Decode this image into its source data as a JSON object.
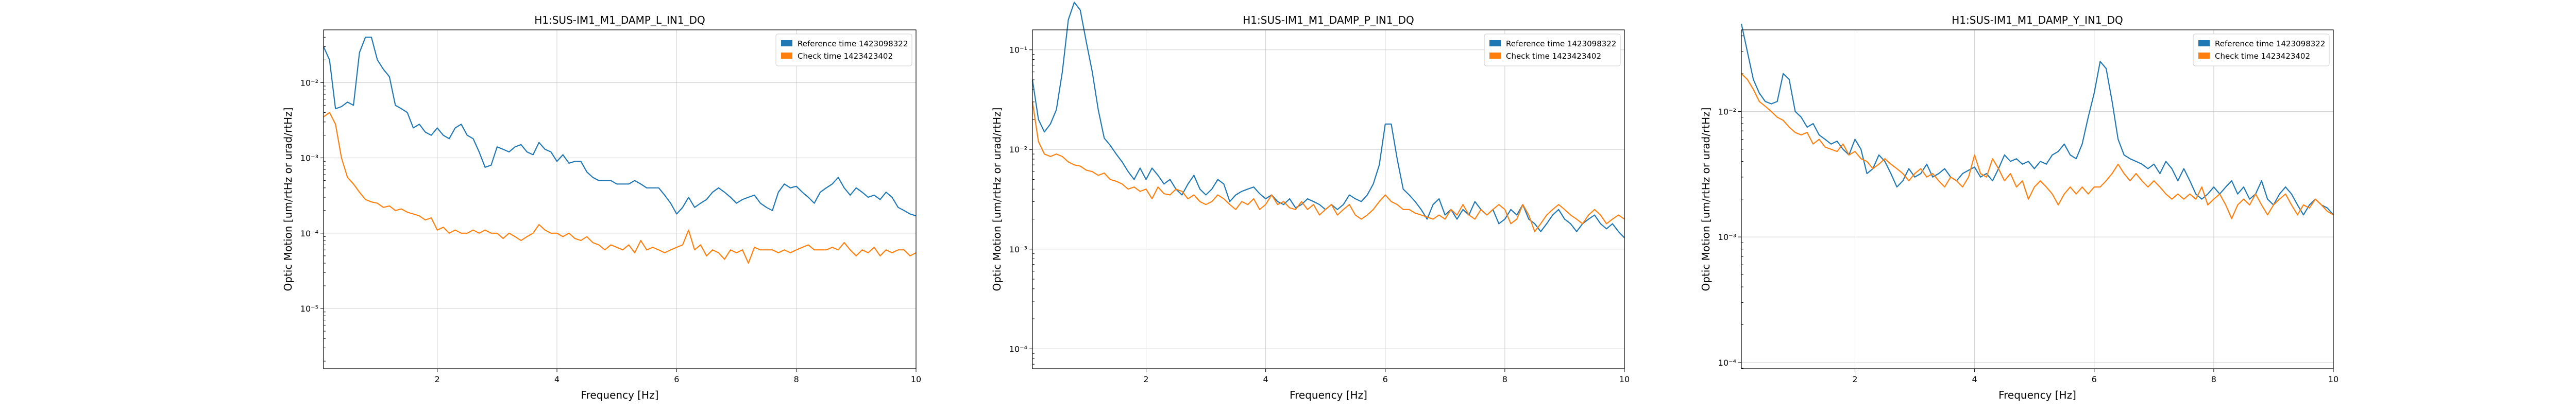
{
  "chart_data": [
    {
      "type": "line",
      "title": "H1:SUS-IM1_M1_DAMP_L_IN1_DQ",
      "xlabel": "Frequency [Hz]",
      "ylabel": "Optic Motion [um/rtHz or urad/rtHz]",
      "xlim": [
        0.1,
        10
      ],
      "ylim_exp": [
        -5.8,
        -1.3
      ],
      "yscale": "log",
      "grid": true,
      "legend_position": "top-right",
      "xticks": [
        2,
        4,
        6,
        8,
        10
      ],
      "yticks": [
        {
          "exp": -2,
          "label": "10⁻²"
        },
        {
          "exp": -3,
          "label": "10⁻³"
        },
        {
          "exp": -4,
          "label": "10⁻⁴"
        },
        {
          "exp": -5,
          "label": "10⁻⁵"
        }
      ],
      "x": [
        0.1,
        0.2,
        0.3,
        0.4,
        0.5,
        0.6,
        0.7,
        0.8,
        0.9,
        1.0,
        1.1,
        1.2,
        1.3,
        1.4,
        1.5,
        1.6,
        1.7,
        1.8,
        1.9,
        2.0,
        2.1,
        2.2,
        2.3,
        2.4,
        2.5,
        2.6,
        2.7,
        2.8,
        2.9,
        3.0,
        3.1,
        3.2,
        3.3,
        3.4,
        3.5,
        3.6,
        3.7,
        3.8,
        3.9,
        4.0,
        4.1,
        4.2,
        4.3,
        4.4,
        4.5,
        4.6,
        4.7,
        4.8,
        4.9,
        5.0,
        5.1,
        5.2,
        5.3,
        5.4,
        5.5,
        5.6,
        5.7,
        5.8,
        5.9,
        6.0,
        6.1,
        6.2,
        6.3,
        6.4,
        6.5,
        6.6,
        6.7,
        6.8,
        6.9,
        7.0,
        7.1,
        7.2,
        7.3,
        7.4,
        7.5,
        7.6,
        7.7,
        7.8,
        7.9,
        8.0,
        8.1,
        8.2,
        8.3,
        8.4,
        8.5,
        8.6,
        8.7,
        8.8,
        8.9,
        9.0,
        9.1,
        9.2,
        9.3,
        9.4,
        9.5,
        9.6,
        9.7,
        9.8,
        9.9,
        10.0
      ],
      "series": [
        {
          "name": "Reference time 1423098322",
          "color": "#1f77b4",
          "values": [
            0.03,
            0.02,
            0.0045,
            0.0048,
            0.0055,
            0.005,
            0.025,
            0.04,
            0.04,
            0.02,
            0.015,
            0.012,
            0.005,
            0.0045,
            0.004,
            0.0025,
            0.0028,
            0.0022,
            0.002,
            0.0025,
            0.002,
            0.0018,
            0.0025,
            0.0028,
            0.002,
            0.0018,
            0.0012,
            0.00075,
            0.0008,
            0.0014,
            0.0013,
            0.0012,
            0.0014,
            0.0015,
            0.0012,
            0.0011,
            0.0016,
            0.0013,
            0.0012,
            0.0009,
            0.0011,
            0.00085,
            0.0009,
            0.0009,
            0.00065,
            0.00055,
            0.0005,
            0.0005,
            0.0005,
            0.00045,
            0.00045,
            0.00045,
            0.0005,
            0.00045,
            0.0004,
            0.0004,
            0.0004,
            0.00032,
            0.00025,
            0.00018,
            0.00022,
            0.0003,
            0.00022,
            0.00025,
            0.00028,
            0.00035,
            0.0004,
            0.00035,
            0.0003,
            0.00025,
            0.00028,
            0.0003,
            0.00032,
            0.00025,
            0.00022,
            0.0002,
            0.00035,
            0.00045,
            0.0004,
            0.00042,
            0.00035,
            0.0003,
            0.00025,
            0.00035,
            0.0004,
            0.00045,
            0.00055,
            0.0004,
            0.00032,
            0.0004,
            0.00035,
            0.0003,
            0.00032,
            0.00028,
            0.00035,
            0.0003,
            0.00022,
            0.0002,
            0.00018,
            0.00017
          ]
        },
        {
          "name": "Check time 1423423402",
          "color": "#ff7f0e",
          "values": [
            0.0035,
            0.004,
            0.0028,
            0.001,
            0.00055,
            0.00045,
            0.00035,
            0.00028,
            0.00026,
            0.00025,
            0.00022,
            0.00023,
            0.0002,
            0.00021,
            0.00019,
            0.00018,
            0.00017,
            0.00015,
            0.00016,
            0.00011,
            0.00012,
            0.0001,
            0.00011,
            0.0001,
            0.0001,
            0.00011,
            0.0001,
            0.00011,
            0.0001,
            0.0001,
            8.5e-05,
            0.0001,
            9e-05,
            8e-05,
            9e-05,
            0.0001,
            0.00013,
            0.00011,
            0.0001,
            0.0001,
            9e-05,
            0.0001,
            8.5e-05,
            8e-05,
            9e-05,
            7.5e-05,
            7e-05,
            6e-05,
            7e-05,
            6.5e-05,
            6e-05,
            7e-05,
            5.5e-05,
            8e-05,
            6e-05,
            6.5e-05,
            6e-05,
            5.5e-05,
            6e-05,
            6.5e-05,
            7e-05,
            0.00011,
            6e-05,
            7e-05,
            5e-05,
            6e-05,
            5.5e-05,
            4.5e-05,
            6e-05,
            5.5e-05,
            6e-05,
            4e-05,
            6.5e-05,
            6e-05,
            6e-05,
            6e-05,
            5.5e-05,
            6e-05,
            5.5e-05,
            6e-05,
            6.5e-05,
            7e-05,
            6e-05,
            6e-05,
            6e-05,
            6.5e-05,
            6e-05,
            7.5e-05,
            6e-05,
            5e-05,
            6e-05,
            5.5e-05,
            6.5e-05,
            5e-05,
            6e-05,
            5.5e-05,
            6e-05,
            6e-05,
            5e-05,
            5.5e-05
          ]
        }
      ]
    },
    {
      "type": "line",
      "title": "H1:SUS-IM1_M1_DAMP_P_IN1_DQ",
      "xlabel": "Frequency [Hz]",
      "ylabel": "Optic Motion [um/rtHz or urad/rtHz]",
      "xlim": [
        0.1,
        10
      ],
      "ylim_exp": [
        -4.2,
        -0.8
      ],
      "yscale": "log",
      "grid": true,
      "legend_position": "top-right",
      "xticks": [
        2,
        4,
        6,
        8,
        10
      ],
      "yticks": [
        {
          "exp": -1,
          "label": "10⁻¹"
        },
        {
          "exp": -2,
          "label": "10⁻²"
        },
        {
          "exp": -3,
          "label": "10⁻³"
        },
        {
          "exp": -4,
          "label": "10⁻⁴"
        }
      ],
      "x": [
        0.1,
        0.2,
        0.3,
        0.4,
        0.5,
        0.6,
        0.7,
        0.8,
        0.9,
        1.0,
        1.1,
        1.2,
        1.3,
        1.4,
        1.5,
        1.6,
        1.7,
        1.8,
        1.9,
        2.0,
        2.1,
        2.2,
        2.3,
        2.4,
        2.5,
        2.6,
        2.7,
        2.8,
        2.9,
        3.0,
        3.1,
        3.2,
        3.3,
        3.4,
        3.5,
        3.6,
        3.7,
        3.8,
        3.9,
        4.0,
        4.1,
        4.2,
        4.3,
        4.4,
        4.5,
        4.6,
        4.7,
        4.8,
        4.9,
        5.0,
        5.1,
        5.2,
        5.3,
        5.4,
        5.5,
        5.6,
        5.7,
        5.8,
        5.9,
        6.0,
        6.1,
        6.2,
        6.3,
        6.4,
        6.5,
        6.6,
        6.7,
        6.8,
        6.9,
        7.0,
        7.1,
        7.2,
        7.3,
        7.4,
        7.5,
        7.6,
        7.7,
        7.8,
        7.9,
        8.0,
        8.1,
        8.2,
        8.3,
        8.4,
        8.5,
        8.6,
        8.7,
        8.8,
        8.9,
        9.0,
        9.1,
        9.2,
        9.3,
        9.4,
        9.5,
        9.6,
        9.7,
        9.8,
        9.9,
        10.0
      ],
      "series": [
        {
          "name": "Reference time 1423098322",
          "color": "#1f77b4",
          "values": [
            0.05,
            0.02,
            0.015,
            0.018,
            0.025,
            0.06,
            0.2,
            0.3,
            0.25,
            0.12,
            0.06,
            0.025,
            0.013,
            0.011,
            0.009,
            0.0075,
            0.006,
            0.005,
            0.0065,
            0.005,
            0.0065,
            0.0055,
            0.0045,
            0.005,
            0.004,
            0.0035,
            0.0045,
            0.0055,
            0.004,
            0.0035,
            0.004,
            0.005,
            0.0045,
            0.003,
            0.0035,
            0.0038,
            0.004,
            0.0042,
            0.0036,
            0.0032,
            0.0035,
            0.003,
            0.0028,
            0.0032,
            0.0026,
            0.0028,
            0.0032,
            0.003,
            0.0028,
            0.0025,
            0.0028,
            0.0025,
            0.0028,
            0.0035,
            0.0032,
            0.003,
            0.0035,
            0.0045,
            0.007,
            0.018,
            0.018,
            0.008,
            0.004,
            0.0035,
            0.003,
            0.0025,
            0.002,
            0.0028,
            0.0032,
            0.0022,
            0.0025,
            0.002,
            0.0025,
            0.0022,
            0.003,
            0.0025,
            0.0022,
            0.0025,
            0.0018,
            0.002,
            0.0025,
            0.0022,
            0.0028,
            0.002,
            0.0018,
            0.0015,
            0.0018,
            0.0022,
            0.0025,
            0.002,
            0.0018,
            0.0015,
            0.0018,
            0.002,
            0.0022,
            0.0018,
            0.0016,
            0.0018,
            0.0015,
            0.0013
          ]
        },
        {
          "name": "Check time 1423423402",
          "color": "#ff7f0e",
          "values": [
            0.03,
            0.012,
            0.009,
            0.0085,
            0.009,
            0.0085,
            0.0075,
            0.007,
            0.0068,
            0.0062,
            0.006,
            0.0055,
            0.0058,
            0.005,
            0.0048,
            0.0045,
            0.004,
            0.0042,
            0.0038,
            0.004,
            0.0032,
            0.0042,
            0.0036,
            0.0035,
            0.004,
            0.0038,
            0.0032,
            0.0035,
            0.003,
            0.0028,
            0.003,
            0.0035,
            0.0032,
            0.0028,
            0.0025,
            0.003,
            0.0028,
            0.0032,
            0.0025,
            0.0028,
            0.0035,
            0.0028,
            0.003,
            0.0026,
            0.0025,
            0.003,
            0.0025,
            0.0028,
            0.0022,
            0.0025,
            0.0028,
            0.0022,
            0.0025,
            0.0028,
            0.0022,
            0.002,
            0.0022,
            0.0025,
            0.003,
            0.0035,
            0.003,
            0.0028,
            0.0025,
            0.0025,
            0.0023,
            0.0022,
            0.0021,
            0.002,
            0.0022,
            0.002,
            0.0025,
            0.0022,
            0.0028,
            0.0022,
            0.002,
            0.0025,
            0.0022,
            0.0025,
            0.0028,
            0.0025,
            0.0018,
            0.002,
            0.0028,
            0.0022,
            0.0015,
            0.0018,
            0.0022,
            0.0025,
            0.0028,
            0.0025,
            0.0022,
            0.002,
            0.0018,
            0.0022,
            0.0025,
            0.0022,
            0.0018,
            0.002,
            0.0022,
            0.002
          ]
        }
      ]
    },
    {
      "type": "line",
      "title": "H1:SUS-IM1_M1_DAMP_Y_IN1_DQ",
      "xlabel": "Frequency [Hz]",
      "ylabel": "Optic Motion [um/rtHz or urad/rtHz]",
      "xlim": [
        0.1,
        10
      ],
      "ylim_exp": [
        -4.05,
        -1.35
      ],
      "yscale": "log",
      "grid": true,
      "legend_position": "top-right",
      "xticks": [
        2,
        4,
        6,
        8,
        10
      ],
      "yticks": [
        {
          "exp": -2,
          "label": "10⁻²"
        },
        {
          "exp": -3,
          "label": "10⁻³"
        },
        {
          "exp": -4,
          "label": "10⁻⁴"
        }
      ],
      "x": [
        0.1,
        0.2,
        0.3,
        0.4,
        0.5,
        0.6,
        0.7,
        0.8,
        0.9,
        1.0,
        1.1,
        1.2,
        1.3,
        1.4,
        1.5,
        1.6,
        1.7,
        1.8,
        1.9,
        2.0,
        2.1,
        2.2,
        2.3,
        2.4,
        2.5,
        2.6,
        2.7,
        2.8,
        2.9,
        3.0,
        3.1,
        3.2,
        3.3,
        3.4,
        3.5,
        3.6,
        3.7,
        3.8,
        3.9,
        4.0,
        4.1,
        4.2,
        4.3,
        4.4,
        4.5,
        4.6,
        4.7,
        4.8,
        4.9,
        5.0,
        5.1,
        5.2,
        5.3,
        5.4,
        5.5,
        5.6,
        5.7,
        5.8,
        5.9,
        6.0,
        6.1,
        6.2,
        6.3,
        6.4,
        6.5,
        6.6,
        6.7,
        6.8,
        6.9,
        7.0,
        7.1,
        7.2,
        7.3,
        7.4,
        7.5,
        7.6,
        7.7,
        7.8,
        7.9,
        8.0,
        8.1,
        8.2,
        8.3,
        8.4,
        8.5,
        8.6,
        8.7,
        8.8,
        8.9,
        9.0,
        9.1,
        9.2,
        9.3,
        9.4,
        9.5,
        9.6,
        9.7,
        9.8,
        9.9,
        10.0
      ],
      "series": [
        {
          "name": "Reference time 1423098322",
          "color": "#1f77b4",
          "values": [
            0.05,
            0.03,
            0.018,
            0.014,
            0.012,
            0.0115,
            0.012,
            0.02,
            0.018,
            0.01,
            0.009,
            0.0075,
            0.008,
            0.0065,
            0.006,
            0.0055,
            0.0058,
            0.005,
            0.0045,
            0.006,
            0.005,
            0.0032,
            0.0035,
            0.0045,
            0.004,
            0.0032,
            0.0025,
            0.0028,
            0.0035,
            0.003,
            0.0032,
            0.0038,
            0.003,
            0.0032,
            0.0035,
            0.003,
            0.0028,
            0.0032,
            0.0034,
            0.0036,
            0.003,
            0.0032,
            0.0028,
            0.0035,
            0.0045,
            0.004,
            0.0042,
            0.0038,
            0.004,
            0.0035,
            0.004,
            0.0038,
            0.0045,
            0.0048,
            0.0055,
            0.0045,
            0.0042,
            0.0055,
            0.009,
            0.014,
            0.025,
            0.022,
            0.012,
            0.006,
            0.0045,
            0.0042,
            0.004,
            0.0038,
            0.0035,
            0.0038,
            0.0032,
            0.004,
            0.0035,
            0.0028,
            0.0035,
            0.0028,
            0.0022,
            0.002,
            0.0022,
            0.0025,
            0.0022,
            0.0025,
            0.0028,
            0.0022,
            0.0025,
            0.002,
            0.0022,
            0.0028,
            0.002,
            0.0018,
            0.0022,
            0.0025,
            0.0022,
            0.0018,
            0.0015,
            0.0018,
            0.002,
            0.0018,
            0.0017,
            0.0015
          ]
        },
        {
          "name": "Check time 1423423402",
          "color": "#ff7f0e",
          "values": [
            0.02,
            0.018,
            0.015,
            0.012,
            0.011,
            0.01,
            0.009,
            0.0085,
            0.0075,
            0.0068,
            0.0065,
            0.0068,
            0.0055,
            0.006,
            0.0052,
            0.005,
            0.0048,
            0.0055,
            0.0045,
            0.0048,
            0.0042,
            0.004,
            0.0035,
            0.0038,
            0.0042,
            0.0038,
            0.0035,
            0.0032,
            0.0028,
            0.0032,
            0.0035,
            0.003,
            0.0032,
            0.0028,
            0.0025,
            0.003,
            0.0028,
            0.0025,
            0.003,
            0.0045,
            0.0032,
            0.003,
            0.0042,
            0.0035,
            0.0028,
            0.0032,
            0.0025,
            0.0028,
            0.002,
            0.0025,
            0.0028,
            0.0025,
            0.0022,
            0.0018,
            0.0022,
            0.0025,
            0.0022,
            0.0025,
            0.0022,
            0.0025,
            0.0025,
            0.0028,
            0.0032,
            0.0038,
            0.0032,
            0.0028,
            0.0032,
            0.0028,
            0.0025,
            0.0028,
            0.0025,
            0.0022,
            0.002,
            0.0022,
            0.002,
            0.0022,
            0.002,
            0.0025,
            0.0018,
            0.002,
            0.0022,
            0.0018,
            0.0014,
            0.0018,
            0.002,
            0.0018,
            0.0022,
            0.0018,
            0.0015,
            0.0018,
            0.002,
            0.0022,
            0.0018,
            0.0015,
            0.0018,
            0.0017,
            0.002,
            0.0018,
            0.0016,
            0.0015
          ]
        }
      ]
    }
  ]
}
